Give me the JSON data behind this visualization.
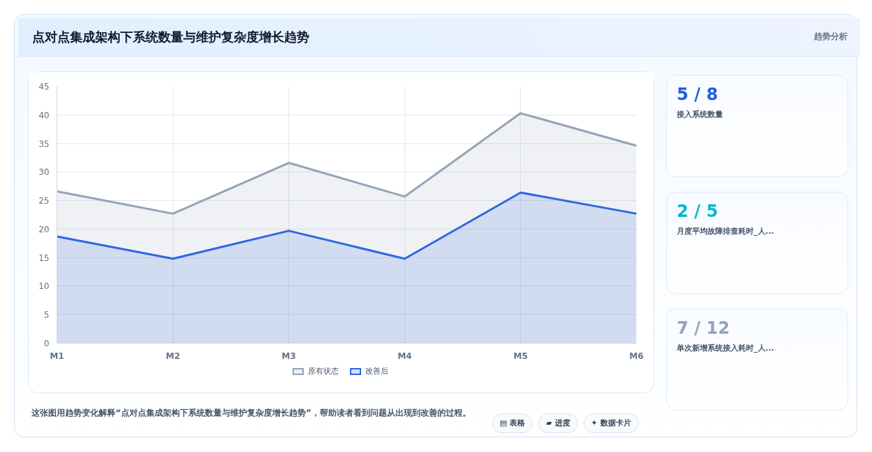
{
  "chart_data": [
    {
      "type": "area",
      "title": "点对点集成架构下系统数量与维护复杂度增长趋势",
      "categories": [
        "M1",
        "M2",
        "M3",
        "M4",
        "M5",
        "M6"
      ],
      "series": [
        {
          "name": "原有状态",
          "color": "#94a3b8",
          "values": [
            26.6,
            22.7,
            31.6,
            25.7,
            40.3,
            34.6
          ]
        },
        {
          "name": "改善后",
          "color": "#2f67e0",
          "values": [
            18.7,
            14.8,
            19.7,
            14.8,
            26.4,
            22.7
          ]
        }
      ],
      "ylim": [
        0,
        45
      ],
      "yticks": [
        0,
        5,
        10,
        15,
        20,
        25,
        30,
        35,
        40,
        45
      ],
      "grid": true,
      "legend": "bottom",
      "annotations": [
        "这张图用趋势变化解释“点对点集成架构下系统数量与维护复杂度增长趋势”，帮助读者看到问题从出现到改善的过程。",
        "▤ 表格",
        "▰ 进度",
        "✦ 数据卡片"
      ]
    },
    {
      "type": "other",
      "title": "趋势分析",
      "annotations": [
        "5 / 8",
        "接入系统数量",
        "2 / 5",
        "月度平均故障排查耗时_人...",
        "7 / 12",
        "单次新增系统接入耗时_人..."
      ],
      "colors": [
        "#1d5fe0",
        "#06b6d4",
        "#94a3b8"
      ]
    }
  ]
}
